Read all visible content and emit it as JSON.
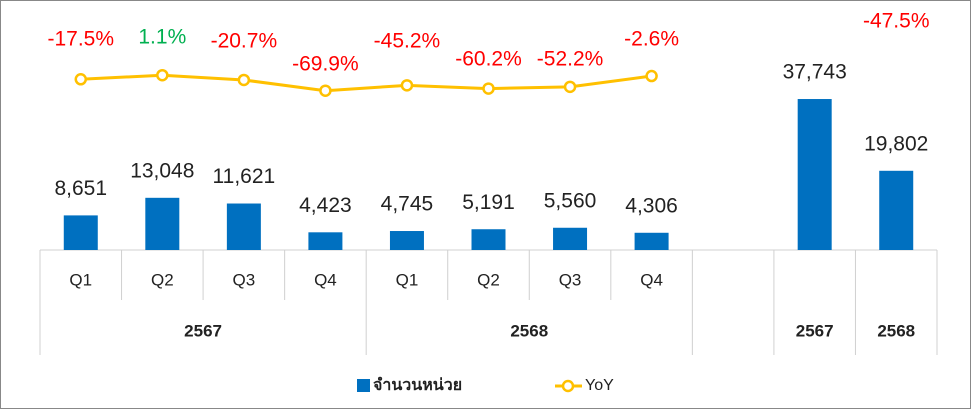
{
  "chart_data": {
    "type": "bar-line",
    "categories": [
      "Q1",
      "Q2",
      "Q3",
      "Q4",
      "Q1",
      "Q2",
      "Q3",
      "Q4",
      null,
      null,
      null
    ],
    "groups": [
      "2567",
      "2567",
      "2567",
      "2567",
      "2568",
      "2568",
      "2568",
      "2568",
      null,
      "2567",
      "2568"
    ],
    "series": [
      {
        "name": "จำนวนหน่วย",
        "type": "bar",
        "color": "#0070c0",
        "values": [
          8651,
          13048,
          11621,
          4423,
          4745,
          5191,
          5560,
          4306,
          null,
          37743,
          19802
        ],
        "value_labels": [
          "8,651",
          "13,048",
          "11,621",
          "4,423",
          "4,745",
          "5,191",
          "5,560",
          "4,306",
          null,
          "37,743",
          "19,802"
        ]
      },
      {
        "name": "YoY",
        "type": "line",
        "axis": "y2",
        "color": "#ffc000",
        "values": [
          -17.5,
          1.1,
          -20.7,
          -69.9,
          -45.2,
          -60.2,
          -52.2,
          -2.6,
          null,
          null,
          -47.5
        ],
        "value_labels": [
          "-17.5%",
          "1.1%",
          "-20.7%",
          "-69.9%",
          "-45.2%",
          "-60.2%",
          "-52.2%",
          "-2.6%",
          null,
          null,
          "-47.5%"
        ]
      }
    ],
    "ylim": [
      0,
      60000
    ],
    "y2lim": [
      -800,
      300
    ],
    "label_colors": {
      "negative": "#ff0000",
      "positive": "#00b050"
    },
    "legend": "bottom"
  }
}
